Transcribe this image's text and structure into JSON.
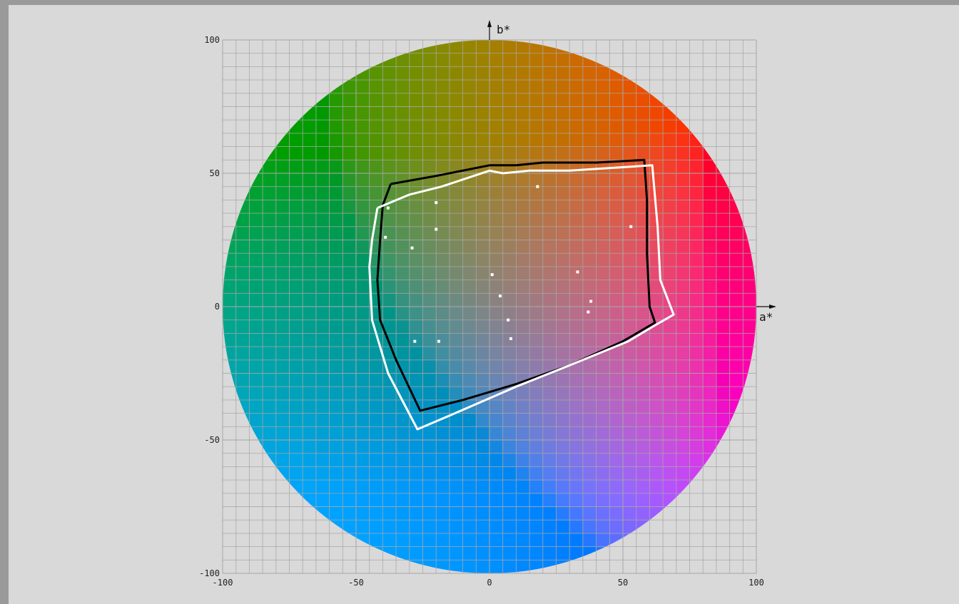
{
  "chart_data": {
    "type": "scatter",
    "x_axis": {
      "label": "a*",
      "range": [
        -100,
        100
      ],
      "tick_labels": [
        "-100",
        "-50",
        "0",
        "50",
        "100"
      ]
    },
    "y_axis": {
      "label": "b*",
      "range": [
        -100,
        100
      ],
      "tick_labels": [
        "100",
        "50",
        "0",
        "-50",
        "-100"
      ]
    },
    "grid": true,
    "grid_step": 5,
    "background": "CIELAB a*b* color wheel, radius 100",
    "series": [
      {
        "style": "outline",
        "color": "#000000",
        "points": [
          [
            -37,
            46
          ],
          [
            -20,
            49
          ],
          [
            0,
            53
          ],
          [
            10,
            53
          ],
          [
            20,
            54
          ],
          [
            30,
            54
          ],
          [
            40,
            54
          ],
          [
            58,
            55
          ],
          [
            59,
            40
          ],
          [
            59,
            20
          ],
          [
            60,
            0
          ],
          [
            62,
            -6
          ],
          [
            50,
            -13
          ],
          [
            30,
            -22
          ],
          [
            10,
            -29
          ],
          [
            -10,
            -35
          ],
          [
            -26,
            -39
          ],
          [
            -35,
            -20
          ],
          [
            -41,
            -5
          ],
          [
            -42,
            10
          ],
          [
            -41,
            25
          ],
          [
            -40,
            38
          ],
          [
            -37,
            46
          ]
        ]
      },
      {
        "style": "outline",
        "color": "#ffffff",
        "points": [
          [
            -42,
            37
          ],
          [
            -30,
            42
          ],
          [
            -18,
            45
          ],
          [
            0,
            51
          ],
          [
            5,
            50
          ],
          [
            15,
            51
          ],
          [
            30,
            51
          ],
          [
            61,
            53
          ],
          [
            63,
            30
          ],
          [
            64,
            10
          ],
          [
            69,
            -3
          ],
          [
            62,
            -7
          ],
          [
            52,
            -13
          ],
          [
            30,
            -22
          ],
          [
            10,
            -30
          ],
          [
            -13,
            -40
          ],
          [
            -27,
            -46
          ],
          [
            -38,
            -25
          ],
          [
            -44,
            -5
          ],
          [
            -45,
            15
          ],
          [
            -44,
            25
          ],
          [
            -42,
            37
          ]
        ]
      },
      {
        "style": "points",
        "color": "#ffffff",
        "points": [
          [
            -38,
            37
          ],
          [
            -20,
            39
          ],
          [
            18,
            45
          ],
          [
            -39,
            26
          ],
          [
            -20,
            29
          ],
          [
            -29,
            22
          ],
          [
            53,
            30
          ],
          [
            1,
            12
          ],
          [
            33,
            13
          ],
          [
            4,
            4
          ],
          [
            38,
            2
          ],
          [
            37,
            -2
          ],
          [
            7,
            -5
          ],
          [
            8,
            -12
          ],
          [
            -28,
            -13
          ],
          [
            -19,
            -13
          ]
        ]
      }
    ]
  }
}
